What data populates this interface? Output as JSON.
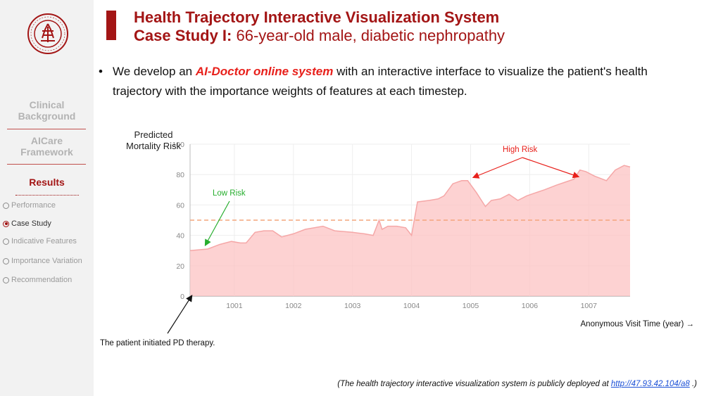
{
  "sidebar": {
    "logo": {
      "text": "PEKING UNIVERSITY 1898",
      "color": "#a31515"
    },
    "sections": [
      {
        "label": "Clinical\nBackground"
      },
      {
        "label": "AICare\nFramework"
      },
      {
        "label": "Results"
      }
    ],
    "nav_items": [
      {
        "label": "Performance",
        "selected": false
      },
      {
        "label": "Case Study",
        "selected": true
      },
      {
        "label": "Indicative Features",
        "selected": false
      },
      {
        "label": "Importance Variation",
        "selected": false
      },
      {
        "label": "Recommendation",
        "selected": false
      }
    ]
  },
  "header": {
    "title": "Health Trajectory Interactive Visualization System",
    "subtitle_bold": "Case Study I:",
    "subtitle_rest": " 66-year-old male, diabetic nephropathy"
  },
  "bullet": {
    "marker": "•",
    "pre": "We develop an ",
    "highlight": "AI-Doctor online system",
    "post": " with an interactive interface to visualize the patient's health trajectory with the importance weights of features at each timestep."
  },
  "chart_data": {
    "type": "area",
    "ylabel": "Predicted\nMortality Risk",
    "xlabel": "Anonymous Visit Time (year) →",
    "ylim": [
      0,
      100
    ],
    "yticks": [
      0,
      20,
      40,
      60,
      80,
      100
    ],
    "xlim": [
      1000.25,
      1007.7
    ],
    "xticks": [
      "1001",
      "1002",
      "1003",
      "1004",
      "1005",
      "1006",
      "1007"
    ],
    "threshold": 50,
    "grid": true,
    "colors": {
      "fill": "#fcc3c3",
      "line": "#f5a7a7",
      "threshold": "#f3a57c",
      "low": "#27ae2e",
      "high": "#e8201b"
    },
    "annotations": {
      "low": "Low Risk",
      "high": "High Risk",
      "pd": "The patient initiated PD therapy."
    },
    "series": [
      {
        "x": [
          1000.25,
          1000.55,
          1000.75,
          1000.95,
          1001.1,
          1001.2,
          1001.35,
          1001.5,
          1001.65,
          1001.8,
          1002.0,
          1002.2,
          1002.5,
          1002.7,
          1003.0,
          1003.2,
          1003.35,
          1003.45,
          1003.5,
          1003.6,
          1003.75,
          1003.9,
          1004.0,
          1004.1,
          1004.3,
          1004.45,
          1004.55,
          1004.7,
          1004.85,
          1004.95,
          1005.1,
          1005.25,
          1005.35,
          1005.5,
          1005.65,
          1005.8,
          1005.95,
          1006.1,
          1006.25,
          1006.45,
          1006.6,
          1006.75,
          1006.85,
          1006.95,
          1007.1,
          1007.3,
          1007.45,
          1007.6,
          1007.7
        ],
        "y": [
          30,
          31,
          34,
          36,
          35,
          35,
          42,
          43,
          43,
          39,
          41,
          44,
          46,
          43,
          42,
          41,
          40,
          50,
          44,
          46,
          46,
          45,
          40,
          62,
          63,
          64,
          66,
          74,
          76,
          76,
          68,
          59,
          63,
          64,
          67,
          63,
          66,
          68,
          70,
          73,
          75,
          77,
          83,
          82,
          79,
          76,
          83,
          86,
          85
        ]
      }
    ]
  },
  "footer": {
    "pre": "(The health trajectory interactive visualization system is publicly deployed at ",
    "link": "http://47.93.42.104/a8",
    "post": " .)"
  }
}
